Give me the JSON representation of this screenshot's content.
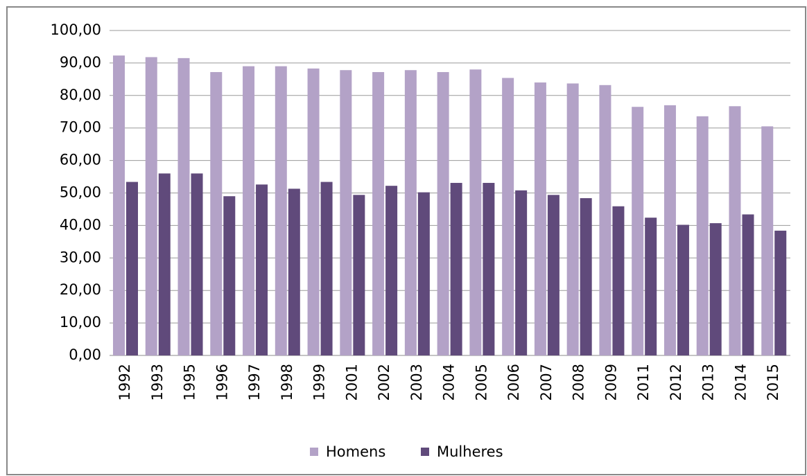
{
  "chart_data": {
    "type": "bar",
    "categories": [
      "1992",
      "1993",
      "1995",
      "1996",
      "1997",
      "1998",
      "1999",
      "2001",
      "2002",
      "2003",
      "2004",
      "2005",
      "2006",
      "2007",
      "2008",
      "2009",
      "2011",
      "2012",
      "2013",
      "2014",
      "2015"
    ],
    "series": [
      {
        "name": "Homens",
        "color": "#b3a2c7",
        "values": [
          92.3,
          91.8,
          91.5,
          87.2,
          89.0,
          89.0,
          88.3,
          87.8,
          87.2,
          87.8,
          87.2,
          88.0,
          85.4,
          84.0,
          83.7,
          83.2,
          76.5,
          77.0,
          73.6,
          76.7,
          70.5
        ]
      },
      {
        "name": "Mulheres",
        "color": "#604a7b",
        "values": [
          53.4,
          56.0,
          56.0,
          49.0,
          52.6,
          51.3,
          53.4,
          49.4,
          52.2,
          50.2,
          53.1,
          53.1,
          50.8,
          49.4,
          48.4,
          45.9,
          42.4,
          40.2,
          40.7,
          43.4,
          38.4
        ]
      }
    ],
    "ylim": [
      0,
      100
    ],
    "yticks": [
      {
        "value": 0,
        "label": "0,00"
      },
      {
        "value": 10,
        "label": "10,00"
      },
      {
        "value": 20,
        "label": "20,00"
      },
      {
        "value": 30,
        "label": "30,00"
      },
      {
        "value": 40,
        "label": "40,00"
      },
      {
        "value": 50,
        "label": "50,00"
      },
      {
        "value": 60,
        "label": "60,00"
      },
      {
        "value": 70,
        "label": "70,00"
      },
      {
        "value": 80,
        "label": "80,00"
      },
      {
        "value": 90,
        "label": "90,00"
      },
      {
        "value": 100,
        "label": "100,00"
      }
    ],
    "grid": true,
    "legend": "bottom"
  }
}
